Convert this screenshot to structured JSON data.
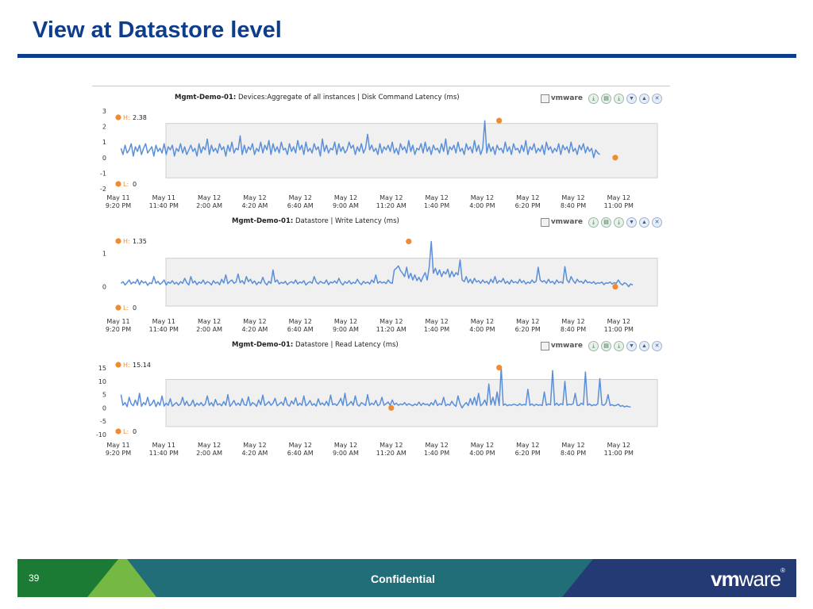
{
  "slide": {
    "title": "View at Datastore level",
    "number": "39",
    "footer_label": "Confidential",
    "footer_logo_vm": "vm",
    "footer_logo_ware": "ware",
    "footer_logo_mark": "®"
  },
  "colors": {
    "title": "#0e3d8c",
    "series_line": "#5b8fd8",
    "marker": "#f28a30",
    "band_fill": "#f0f0f0",
    "footer_green": "#1b7a34",
    "footer_light_green": "#75b843",
    "footer_teal": "#216e79",
    "footer_navy": "#233a74"
  },
  "panels": [
    {
      "entity": "Mgmt-Demo-01:",
      "metric": "Devices:Aggregate of all instances | Disk Command Latency (ms)",
      "vm_label": "vmware",
      "high_label": "H:",
      "high_value": "2.38",
      "low_label": "L:",
      "low_value": "0"
    },
    {
      "entity": "Mgmt-Demo-01:",
      "metric": "Datastore | Write Latency (ms)",
      "vm_label": "vmware",
      "high_label": "H:",
      "high_value": "1.35",
      "low_label": "L:",
      "low_value": "0"
    },
    {
      "entity": "Mgmt-Demo-01:",
      "metric": "Datastore | Read Latency (ms)",
      "vm_label": "vmware",
      "high_label": "H:",
      "high_value": "15.14",
      "low_label": "L:",
      "low_value": "0"
    }
  ],
  "toolbar_icons": [
    "vm-toggle-icon",
    "download-icon",
    "export-icon",
    "download-icon",
    "collapse-icon",
    "expand-icon",
    "close-icon"
  ],
  "chart_data": [
    {
      "type": "line",
      "title": "Devices:Aggregate of all instances | Disk Command Latency (ms)",
      "x_ticks": [
        [
          "May 11",
          "9:20 PM"
        ],
        [
          "May 11",
          "11:40 PM"
        ],
        [
          "May 12",
          "2:00 AM"
        ],
        [
          "May 12",
          "4:20 AM"
        ],
        [
          "May 12",
          "6:40 AM"
        ],
        [
          "May 12",
          "9:00 AM"
        ],
        [
          "May 12",
          "11:20 AM"
        ],
        [
          "May 12",
          "1:40 PM"
        ],
        [
          "May 12",
          "4:00 PM"
        ],
        [
          "May 12",
          "6:20 PM"
        ],
        [
          "May 12",
          "8:40 PM"
        ],
        [
          "May 12",
          "11:00 PM"
        ]
      ],
      "y_ticks": [
        3,
        2,
        1,
        0,
        -1,
        -2
      ],
      "ylim": [
        -2,
        3
      ],
      "band": [
        -1.3,
        2.2
      ],
      "x_range_hours": [
        0,
        26.5
      ],
      "high": {
        "x": 18.8,
        "y": 2.38,
        "label": "2.38"
      },
      "low": {
        "x": 24.45,
        "y": 0,
        "label": "0"
      },
      "series": [
        {
          "x_start": 0.4,
          "x_step": 0.1,
          "values": [
            0.6,
            0.2,
            0.8,
            0.3,
            0.5,
            0.9,
            0.1,
            0.7,
            0.4,
            0.8,
            0.2,
            0.6,
            0.9,
            0.3,
            0.5,
            0.7,
            0.1,
            0.8,
            0.4,
            0.6,
            0.3,
            0.9,
            0.2,
            0.7,
            0.5,
            0.8,
            0.1,
            0.6,
            0.4,
            0.9,
            0.3,
            0.7,
            0.2,
            0.5,
            0.8,
            0.4,
            0.6,
            0.1,
            0.9,
            0.3,
            0.7,
            0.5,
            1.2,
            0.2,
            0.8,
            0.4,
            0.6,
            0.3,
            0.9,
            0.5,
            0.7,
            0.1,
            0.8,
            0.4,
            1.0,
            0.3,
            0.6,
            0.5,
            1.4,
            0.2,
            0.8,
            0.3,
            0.7,
            0.5,
            0.9,
            0.2,
            0.6,
            0.4,
            1.0,
            0.3,
            0.8,
            0.5,
            1.1,
            0.2,
            0.9,
            0.4,
            0.7,
            0.3,
            1.0,
            0.5,
            0.6,
            0.2,
            0.9,
            0.4,
            0.7,
            0.3,
            1.1,
            0.5,
            0.8,
            0.2,
            1.0,
            0.4,
            0.6,
            0.3,
            0.9,
            0.5,
            0.7,
            0.1,
            1.2,
            0.4,
            0.8,
            0.3,
            0.6,
            0.5,
            1.0,
            0.2,
            0.9,
            0.4,
            0.7,
            0.3,
            0.5,
            1.0,
            0.6,
            0.8,
            0.2,
            0.7,
            0.4,
            0.9,
            0.3,
            0.6,
            1.5,
            0.5,
            0.8,
            0.4,
            0.6,
            0.2,
            0.9,
            0.3,
            0.7,
            0.5,
            0.8,
            0.4,
            1.0,
            0.3,
            0.6,
            0.2,
            0.9,
            0.5,
            0.7,
            0.3,
            1.1,
            0.4,
            0.8,
            0.2,
            0.6,
            0.5,
            0.9,
            0.3,
            1.0,
            0.4,
            0.7,
            0.2,
            0.8,
            0.5,
            0.6,
            0.3,
            0.9,
            0.4,
            1.2,
            0.2,
            0.7,
            0.5,
            0.8,
            0.3,
            1.0,
            0.4,
            0.6,
            0.2,
            0.9,
            0.5,
            0.7,
            0.3,
            1.1,
            0.4,
            0.8,
            0.2,
            0.6,
            2.38,
            0.3,
            0.9,
            0.4,
            0.7,
            0.2,
            0.8,
            0.5,
            0.6,
            0.3,
            1.0,
            0.4,
            0.7,
            0.2,
            0.9,
            0.5,
            0.6,
            0.3,
            0.8,
            0.4,
            1.1,
            0.2,
            0.7,
            0.5,
            0.9,
            0.3,
            0.6,
            0.4,
            0.8,
            0.2,
            1.0,
            0.5,
            0.7,
            0.3,
            0.6,
            0.4,
            0.9,
            0.2,
            0.8,
            0.5,
            0.7,
            0.3,
            1.0,
            0.4,
            0.6,
            0.2,
            0.8,
            0.5,
            0.9,
            0.3,
            0.7,
            0.4,
            0.6,
            0.0,
            0.5,
            0.3,
            0.2
          ]
        }
      ]
    },
    {
      "type": "line",
      "title": "Datastore | Write Latency (ms)",
      "x_ticks": [
        [
          "May 11",
          "9:20 PM"
        ],
        [
          "May 11",
          "11:40 PM"
        ],
        [
          "May 12",
          "2:00 AM"
        ],
        [
          "May 12",
          "4:20 AM"
        ],
        [
          "May 12",
          "6:40 AM"
        ],
        [
          "May 12",
          "9:00 AM"
        ],
        [
          "May 12",
          "11:20 AM"
        ],
        [
          "May 12",
          "1:40 PM"
        ],
        [
          "May 12",
          "4:00 PM"
        ],
        [
          "May 12",
          "6:20 PM"
        ],
        [
          "May 12",
          "8:40 PM"
        ],
        [
          "May 12",
          "11:00 PM"
        ]
      ],
      "y_ticks": [
        1,
        0
      ],
      "ylim": [
        -0.65,
        1.55
      ],
      "band": [
        -0.58,
        0.85
      ],
      "x_range_hours": [
        0,
        26.5
      ],
      "high": {
        "x": 14.4,
        "y": 1.35,
        "label": "1.35"
      },
      "low": {
        "x": 24.45,
        "y": 0,
        "label": "0"
      },
      "series": [
        {
          "x_start": 0.4,
          "x_step": 0.1,
          "values": [
            0.1,
            0.15,
            0.05,
            0.12,
            0.2,
            0.08,
            0.14,
            0.1,
            0.22,
            0.06,
            0.18,
            0.11,
            0.15,
            0.04,
            0.12,
            0.09,
            0.3,
            0.1,
            0.16,
            0.07,
            0.12,
            0.2,
            0.05,
            0.14,
            0.1,
            0.18,
            0.08,
            0.13,
            0.06,
            0.15,
            0.1,
            0.25,
            0.12,
            0.05,
            0.3,
            0.11,
            0.17,
            0.06,
            0.14,
            0.1,
            0.2,
            0.08,
            0.15,
            0.12,
            0.05,
            0.18,
            0.1,
            0.14,
            0.06,
            0.22,
            0.11,
            0.35,
            0.09,
            0.16,
            0.2,
            0.1,
            0.14,
            0.38,
            0.12,
            0.18,
            0.08,
            0.3,
            0.15,
            0.22,
            0.1,
            0.17,
            0.06,
            0.14,
            0.1,
            0.28,
            0.12,
            0.05,
            0.16,
            0.1,
            0.5,
            0.14,
            0.2,
            0.08,
            0.13,
            0.1,
            0.16,
            0.06,
            0.12,
            0.15,
            0.1,
            0.2,
            0.08,
            0.14,
            0.11,
            0.18,
            0.05,
            0.12,
            0.15,
            0.1,
            0.3,
            0.14,
            0.08,
            0.16,
            0.12,
            0.1,
            0.2,
            0.06,
            0.14,
            0.11,
            0.17,
            0.1,
            0.25,
            0.12,
            0.05,
            0.15,
            0.1,
            0.18,
            0.08,
            0.13,
            0.1,
            0.22,
            0.12,
            0.06,
            0.16,
            0.1,
            0.14,
            0.08,
            0.2,
            0.12,
            0.35,
            0.1,
            0.16,
            0.11,
            0.14,
            0.09,
            0.2,
            0.12,
            0.1,
            0.5,
            0.55,
            0.62,
            0.48,
            0.4,
            0.3,
            0.58,
            0.25,
            0.4,
            0.2,
            0.35,
            0.18,
            0.28,
            0.15,
            0.3,
            0.42,
            0.2,
            0.6,
            1.35,
            0.4,
            0.55,
            0.35,
            0.5,
            0.3,
            0.45,
            0.38,
            0.52,
            0.28,
            0.46,
            0.3,
            0.42,
            0.35,
            0.8,
            0.2,
            0.15,
            0.3,
            0.12,
            0.22,
            0.1,
            0.25,
            0.14,
            0.18,
            0.1,
            0.2,
            0.12,
            0.16,
            0.08,
            0.22,
            0.12,
            0.3,
            0.1,
            0.18,
            0.14,
            0.25,
            0.1,
            0.16,
            0.08,
            0.2,
            0.12,
            0.15,
            0.1,
            0.22,
            0.12,
            0.18,
            0.08,
            0.14,
            0.1,
            0.2,
            0.12,
            0.16,
            0.58,
            0.2,
            0.14,
            0.18,
            0.1,
            0.22,
            0.12,
            0.16,
            0.08,
            0.2,
            0.12,
            0.15,
            0.1,
            0.6,
            0.2,
            0.12,
            0.3,
            0.18,
            0.1,
            0.22,
            0.14,
            0.16,
            0.1,
            0.2,
            0.12,
            0.14,
            0.1,
            0.15,
            0.08,
            0.12,
            0.1,
            0.14,
            0.06,
            0.12,
            0.1,
            0.14,
            0.08,
            0.12,
            0.1,
            0.2,
            0.1,
            0.05,
            0.12,
            0.08,
            0.0,
            0.08,
            0.05
          ]
        }
      ]
    },
    {
      "type": "line",
      "title": "Datastore | Read Latency (ms)",
      "x_ticks": [
        [
          "May 11",
          "9:20 PM"
        ],
        [
          "May 11",
          "11:40 PM"
        ],
        [
          "May 12",
          "2:00 AM"
        ],
        [
          "May 12",
          "4:20 AM"
        ],
        [
          "May 12",
          "6:40 AM"
        ],
        [
          "May 12",
          "9:00 AM"
        ],
        [
          "May 12",
          "11:20 AM"
        ],
        [
          "May 12",
          "1:40 PM"
        ],
        [
          "May 12",
          "4:00 PM"
        ],
        [
          "May 12",
          "6:20 PM"
        ],
        [
          "May 12",
          "8:40 PM"
        ],
        [
          "May 12",
          "11:00 PM"
        ]
      ],
      "y_ticks": [
        15,
        10,
        5,
        0,
        -5,
        -10
      ],
      "ylim": [
        -10,
        18
      ],
      "band": [
        -7,
        10.7
      ],
      "x_range_hours": [
        0,
        26.5
      ],
      "high": {
        "x": 18.8,
        "y": 15.14,
        "label": "15.14"
      },
      "low": {
        "x": 13.55,
        "y": 0,
        "label": "0"
      },
      "series": [
        {
          "x_start": 0.4,
          "x_step": 0.1,
          "values": [
            5.0,
            1.0,
            2.0,
            0.5,
            4.0,
            1.5,
            0.8,
            3.0,
            1.0,
            5.5,
            0.6,
            2.0,
            1.2,
            4.0,
            0.8,
            1.5,
            3.0,
            0.5,
            2.2,
            1.0,
            4.5,
            0.7,
            1.8,
            1.0,
            3.5,
            0.6,
            1.4,
            2.0,
            0.9,
            1.5,
            4.0,
            1.0,
            2.5,
            0.8,
            1.2,
            3.0,
            0.6,
            1.8,
            1.0,
            2.0,
            0.8,
            1.5,
            4.5,
            1.0,
            2.0,
            0.7,
            3.2,
            1.1,
            1.6,
            0.8,
            2.4,
            1.0,
            5.0,
            0.6,
            1.5,
            2.8,
            1.0,
            1.8,
            0.9,
            3.5,
            1.2,
            1.0,
            4.2,
            0.8,
            2.0,
            1.5,
            0.6,
            3.0,
            1.2,
            4.8,
            0.9,
            1.6,
            2.4,
            1.0,
            1.8,
            3.6,
            0.8,
            1.4,
            2.2,
            1.0,
            4.0,
            1.2,
            0.7,
            2.6,
            1.4,
            3.8,
            0.9,
            1.8,
            1.0,
            4.5,
            0.8,
            1.5,
            2.8,
            1.0,
            1.6,
            0.7,
            3.4,
            1.2,
            1.9,
            1.0,
            2.5,
            0.8,
            4.8,
            1.2,
            1.6,
            0.9,
            2.0,
            3.6,
            1.0,
            5.5,
            0.8,
            1.4,
            2.4,
            1.0,
            4.5,
            1.2,
            0.7,
            2.0,
            1.5,
            0.9,
            5.0,
            1.0,
            1.8,
            1.2,
            2.8,
            0.8,
            1.4,
            4.0,
            1.0,
            1.6,
            2.2,
            1.0,
            3.0,
            1.2,
            1.8,
            1.0,
            1.5,
            1.2,
            2.0,
            1.0,
            1.6,
            1.2,
            0.8,
            1.5,
            1.0,
            2.2,
            0.9,
            1.8,
            1.2,
            1.5,
            0.8,
            2.0,
            1.1,
            3.0,
            0.9,
            1.6,
            1.2,
            4.0,
            0.8,
            1.4,
            1.0,
            2.5,
            1.2,
            0.6,
            4.5,
            1.5,
            0.0,
            1.2,
            2.0,
            0.9,
            3.5,
            1.2,
            4.0,
            1.0,
            5.5,
            0.8,
            1.5,
            3.0,
            1.0,
            9.0,
            1.2,
            4.0,
            1.0,
            6.0,
            0.9,
            15.14,
            1.0,
            1.5,
            0.8,
            1.2,
            1.0,
            1.4,
            1.2,
            0.9,
            1.6,
            1.0,
            1.3,
            1.1,
            7.0,
            1.0,
            1.5,
            0.8,
            1.4,
            1.0,
            1.2,
            0.9,
            6.0,
            1.0,
            1.5,
            1.2,
            14.0,
            1.0,
            1.8,
            0.9,
            1.6,
            1.2,
            10.0,
            1.0,
            1.4,
            1.2,
            1.6,
            5.5,
            1.0,
            0.9,
            1.8,
            1.2,
            13.5,
            1.0,
            1.5,
            0.8,
            1.2,
            1.0,
            1.6,
            11.0,
            1.2,
            1.0,
            1.8,
            5.0,
            1.0,
            1.2,
            0.8,
            1.0,
            1.4,
            0.6,
            0.9,
            0.4,
            0.7,
            0.5,
            0.3
          ]
        }
      ]
    }
  ]
}
